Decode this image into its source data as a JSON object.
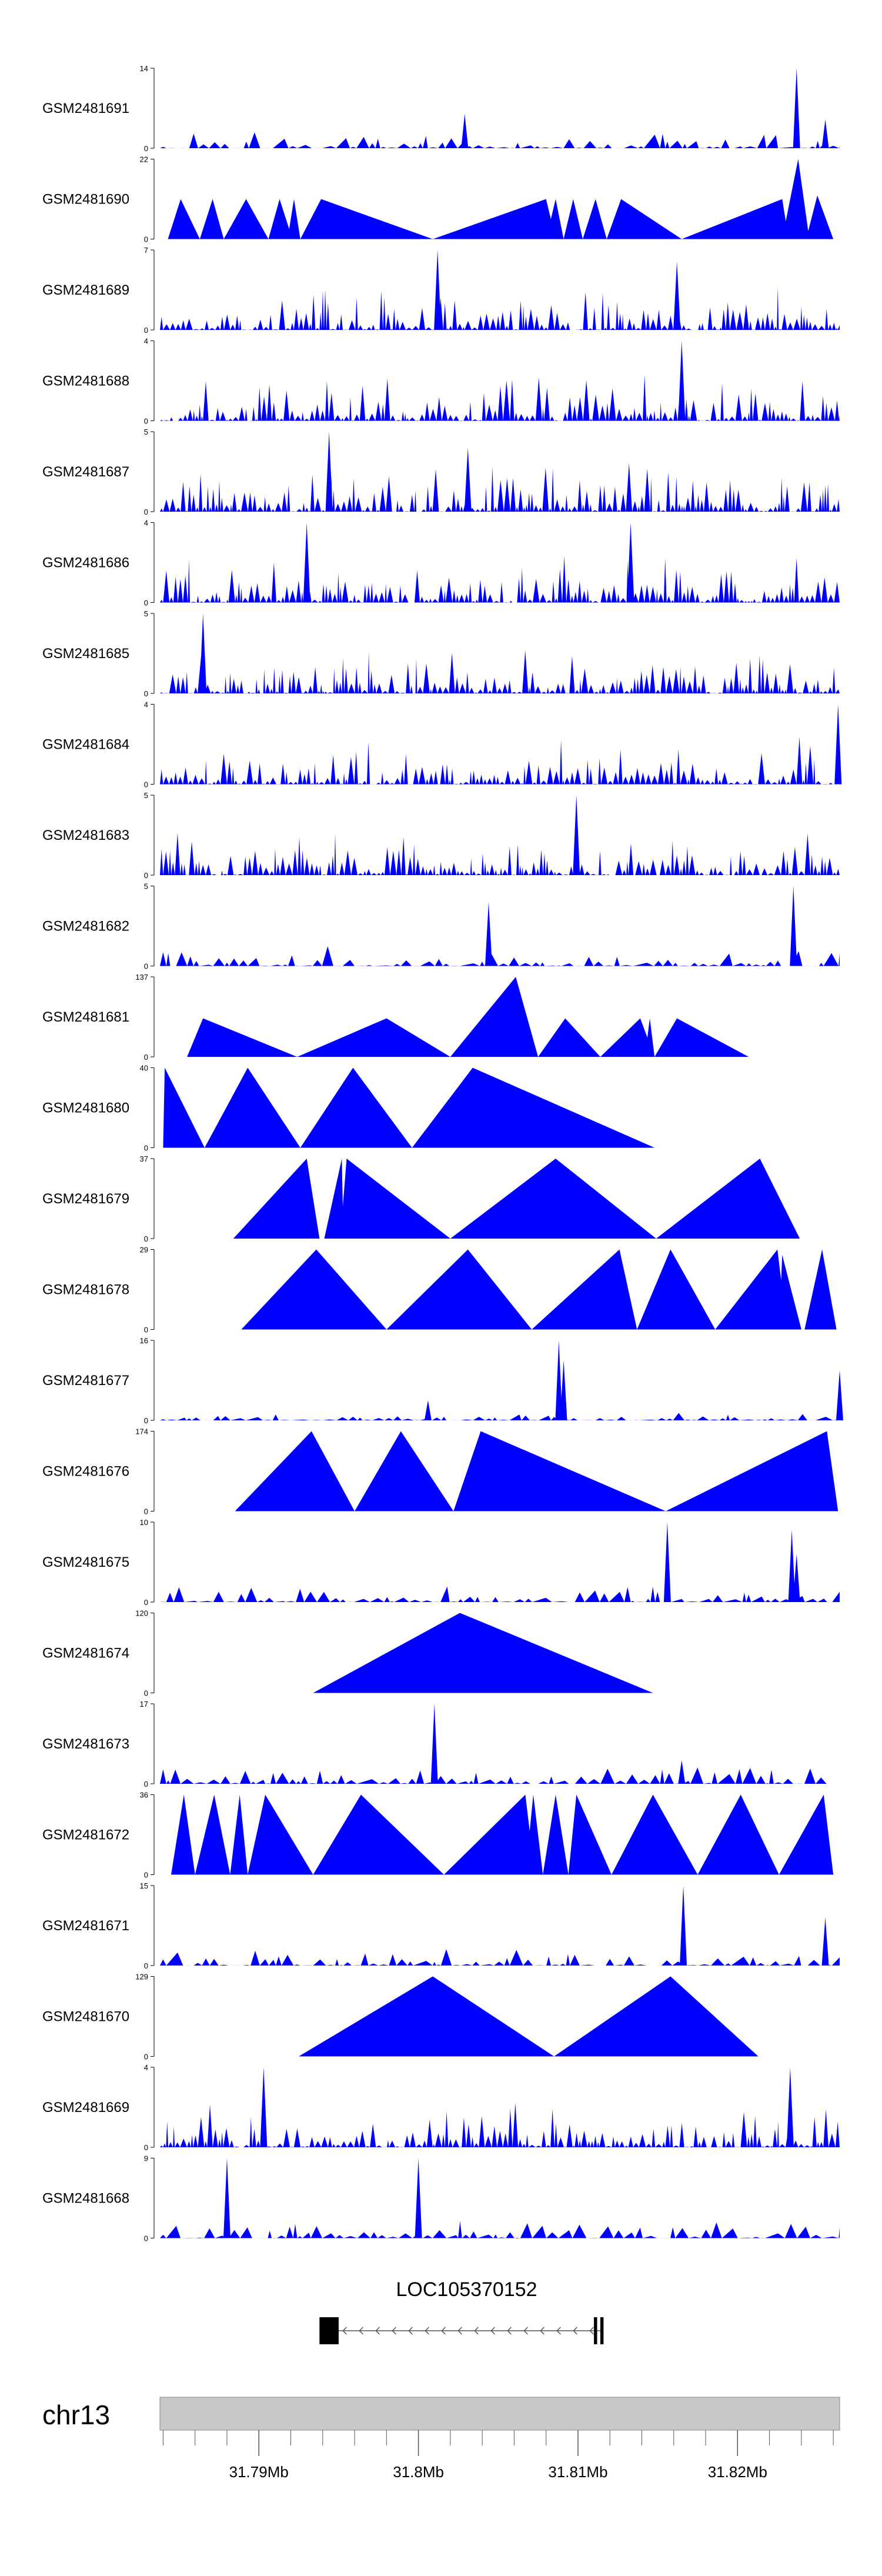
{
  "chart_data": {
    "type": "area",
    "title": "",
    "x_range_mb": [
      31.7838,
      31.8264
    ],
    "x_axis": {
      "chrom_label": "chr13",
      "tick_labels": [
        {
          "value": 31.79,
          "label": "31.79Mb"
        },
        {
          "value": 31.8,
          "label": "31.8Mb"
        },
        {
          "value": 31.81,
          "label": "31.81Mb"
        },
        {
          "value": 31.82,
          "label": "31.82Mb"
        }
      ],
      "minor_tick_step_mb": 0.002
    },
    "gene": {
      "name": "LOC105370152",
      "strand": "-",
      "start_mb": 31.7938,
      "end_mb": 31.8115,
      "exons_mb": [
        [
          31.7938,
          31.795
        ],
        [
          31.811,
          31.8112
        ],
        [
          31.8114,
          31.8116
        ]
      ]
    },
    "tracks": [
      {
        "name": "GSM2481691",
        "ymax": 14,
        "kind": "sparse",
        "seed": 91,
        "peaks": [
          [
            31.8237,
            14
          ],
          [
            31.8029,
            6
          ],
          [
            31.8255,
            5
          ]
        ]
      },
      {
        "name": "GSM2481690",
        "ymax": 22,
        "kind": "tri",
        "tri": [
          [
            31.7843,
            31.7863,
            31.7851,
            11
          ],
          [
            31.7863,
            31.7878,
            31.7871,
            11
          ],
          [
            31.7878,
            31.7906,
            31.7892,
            11
          ],
          [
            31.7906,
            31.7921,
            31.7913,
            11
          ],
          [
            31.7918,
            31.7926,
            31.7922,
            11
          ],
          [
            31.7926,
            31.8009,
            31.7939,
            11
          ],
          [
            31.8009,
            31.8086,
            31.808,
            11
          ],
          [
            31.808,
            31.8091,
            31.8086,
            11
          ],
          [
            31.8091,
            31.8103,
            31.8097,
            11
          ],
          [
            31.8103,
            31.8118,
            31.8111,
            11
          ],
          [
            31.8118,
            31.8165,
            31.8127,
            11
          ],
          [
            31.8165,
            31.8232,
            31.8228,
            11
          ],
          [
            31.8228,
            31.8245,
            31.8238,
            22
          ],
          [
            31.8243,
            31.826,
            31.825,
            12
          ]
        ]
      },
      {
        "name": "GSM2481689",
        "ymax": 7,
        "kind": "dense",
        "seed": 89,
        "peaks": [
          [
            31.8012,
            7
          ],
          [
            31.8162,
            6
          ]
        ]
      },
      {
        "name": "GSM2481688",
        "ymax": 4,
        "kind": "dense",
        "seed": 88,
        "peaks": [
          [
            31.8165,
            4
          ]
        ]
      },
      {
        "name": "GSM2481687",
        "ymax": 5,
        "kind": "dense",
        "seed": 87,
        "peaks": [
          [
            31.7944,
            5
          ],
          [
            31.8031,
            4
          ]
        ]
      },
      {
        "name": "GSM2481686",
        "ymax": 4,
        "kind": "dense",
        "seed": 86,
        "peaks": [
          [
            31.793,
            4
          ],
          [
            31.8133,
            4
          ]
        ]
      },
      {
        "name": "GSM2481685",
        "ymax": 5,
        "kind": "dense",
        "seed": 85,
        "peaks": [
          [
            31.7865,
            5
          ]
        ]
      },
      {
        "name": "GSM2481684",
        "ymax": 4,
        "kind": "dense",
        "seed": 84,
        "peaks": [
          [
            31.8263,
            4
          ]
        ]
      },
      {
        "name": "GSM2481683",
        "ymax": 5,
        "kind": "dense",
        "seed": 83,
        "peaks": [
          [
            31.8099,
            5
          ]
        ]
      },
      {
        "name": "GSM2481682",
        "ymax": 5,
        "kind": "sparse",
        "seed": 82,
        "peaks": [
          [
            31.8235,
            5
          ],
          [
            31.8044,
            4
          ]
        ]
      },
      {
        "name": "GSM2481681",
        "ymax": 137,
        "kind": "tri",
        "tri": [
          [
            31.7855,
            31.7924,
            31.7865,
            66
          ],
          [
            31.7924,
            31.802,
            31.798,
            66
          ],
          [
            31.802,
            31.8075,
            31.8061,
            137
          ],
          [
            31.8075,
            31.8114,
            31.8092,
            66
          ],
          [
            31.8114,
            31.8148,
            31.8139,
            66
          ],
          [
            31.8142,
            31.8148,
            31.8145,
            66
          ],
          [
            31.8148,
            31.8207,
            31.8162,
            66
          ]
        ]
      },
      {
        "name": "GSM2481680",
        "ymax": 40,
        "kind": "tri",
        "tri": [
          [
            31.784,
            31.7866,
            31.7841,
            40
          ],
          [
            31.7866,
            31.7926,
            31.7893,
            40
          ],
          [
            31.7926,
            31.7996,
            31.7959,
            40
          ],
          [
            31.7996,
            31.8148,
            31.8034,
            40
          ],
          [
            31.8031,
            31.8035,
            31.8033,
            30
          ]
        ]
      },
      {
        "name": "GSM2481679",
        "ymax": 37,
        "kind": "tri",
        "tri": [
          [
            31.7884,
            31.7938,
            31.793,
            37
          ],
          [
            31.7941,
            31.7953,
            31.7952,
            37
          ],
          [
            31.7951,
            31.802,
            31.7955,
            37
          ],
          [
            31.7956,
            31.7957,
            31.7956,
            25
          ],
          [
            31.802,
            31.8149,
            31.8086,
            37
          ],
          [
            31.8149,
            31.8239,
            31.8214,
            37
          ]
        ]
      },
      {
        "name": "GSM2481678",
        "ymax": 29,
        "kind": "tri",
        "tri": [
          [
            31.7889,
            31.798,
            31.7936,
            29
          ],
          [
            31.798,
            31.8071,
            31.8031,
            29
          ],
          [
            31.8071,
            31.8137,
            31.8126,
            29
          ],
          [
            31.8137,
            31.8186,
            31.8158,
            29
          ],
          [
            31.8186,
            31.8231,
            31.8225,
            29
          ],
          [
            31.8226,
            31.824,
            31.8228,
            27
          ],
          [
            31.8242,
            31.8262,
            31.8253,
            29
          ]
        ]
      },
      {
        "name": "GSM2481677",
        "ymax": 16,
        "kind": "low",
        "seed": 77,
        "peaks": [
          [
            31.8088,
            16
          ],
          [
            31.8091,
            12
          ],
          [
            31.8264,
            10
          ],
          [
            31.8006,
            4
          ]
        ]
      },
      {
        "name": "GSM2481676",
        "ymax": 174,
        "kind": "tri",
        "tri": [
          [
            31.7885,
            31.796,
            31.7933,
            174
          ],
          [
            31.796,
            31.8022,
            31.7989,
            174
          ],
          [
            31.8022,
            31.8155,
            31.8039,
            174
          ],
          [
            31.8155,
            31.8263,
            31.8256,
            174
          ]
        ]
      },
      {
        "name": "GSM2481675",
        "ymax": 10,
        "kind": "sparse",
        "seed": 75,
        "peaks": [
          [
            31.8156,
            10
          ],
          [
            31.8234,
            9
          ],
          [
            31.8237,
            6
          ]
        ]
      },
      {
        "name": "GSM2481674",
        "ymax": 120,
        "kind": "tri",
        "tri": [
          [
            31.7934,
            31.8147,
            31.8026,
            120
          ]
        ]
      },
      {
        "name": "GSM2481673",
        "ymax": 17,
        "kind": "sparse",
        "seed": 73,
        "peaks": [
          [
            31.801,
            17
          ],
          [
            31.8165,
            5
          ]
        ]
      },
      {
        "name": "GSM2481672",
        "ymax": 36,
        "kind": "tri",
        "tri": [
          [
            31.7845,
            31.786,
            31.7853,
            36
          ],
          [
            31.786,
            31.7882,
            31.7872,
            36
          ],
          [
            31.7882,
            31.7893,
            31.7888,
            36
          ],
          [
            31.7893,
            31.7934,
            31.7904,
            36
          ],
          [
            31.7934,
            31.8016,
            31.7964,
            36
          ],
          [
            31.8016,
            31.8073,
            31.8067,
            36
          ],
          [
            31.8067,
            31.8078,
            31.8072,
            36
          ],
          [
            31.8078,
            31.8094,
            31.8086,
            36
          ],
          [
            31.8094,
            31.8121,
            31.8099,
            36
          ],
          [
            31.8121,
            31.8175,
            31.8147,
            36
          ],
          [
            31.8175,
            31.8226,
            31.8202,
            36
          ],
          [
            31.8198,
            31.8201,
            31.82,
            20
          ],
          [
            31.8226,
            31.826,
            31.8254,
            36
          ]
        ]
      },
      {
        "name": "GSM2481671",
        "ymax": 15,
        "kind": "sparse",
        "seed": 71,
        "peaks": [
          [
            31.8166,
            15
          ],
          [
            31.8255,
            9
          ]
        ]
      },
      {
        "name": "GSM2481670",
        "ymax": 129,
        "kind": "tri",
        "tri": [
          [
            31.7925,
            31.8085,
            31.8009,
            129
          ],
          [
            31.8085,
            31.8213,
            31.8158,
            129
          ]
        ]
      },
      {
        "name": "GSM2481669",
        "ymax": 4,
        "kind": "dense",
        "seed": 69,
        "peaks": [
          [
            31.7903,
            4
          ],
          [
            31.8233,
            4
          ]
        ]
      },
      {
        "name": "GSM2481668",
        "ymax": 9,
        "kind": "sparse",
        "seed": 68,
        "peaks": [
          [
            31.8,
            9
          ],
          [
            31.788,
            9
          ]
        ]
      }
    ]
  },
  "colors": {
    "track_fill": "#0000ff",
    "ideogram_fill": "#c8c8c8",
    "ideogram_stroke": "#888888"
  }
}
